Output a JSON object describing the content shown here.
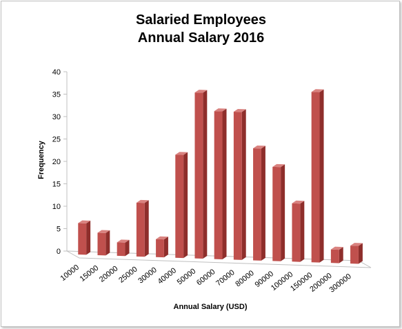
{
  "chart_data": {
    "type": "bar",
    "title_line1": "Salaried Employees",
    "title_line2": "Annual Salary 2016",
    "xlabel": "Annual Salary (USD)",
    "ylabel": "Frequency",
    "ylim": [
      0,
      40
    ],
    "yticks": [
      "0",
      "5",
      "10",
      "15",
      "20",
      "25",
      "30",
      "35",
      "40"
    ],
    "categories": [
      "10000",
      "15000",
      "20000",
      "25000",
      "30000",
      "40000",
      "50000",
      "60000",
      "70000",
      "80000",
      "90000",
      "100000",
      "150000",
      "200000",
      "300000"
    ],
    "values": [
      7,
      5,
      3,
      12,
      4,
      23,
      37,
      33,
      33,
      25,
      21,
      13,
      38,
      3,
      4
    ],
    "bar_color": "#c0504d",
    "bar_side_color": "#8e2e2b",
    "bar_top_color": "#d9827f",
    "grid": false,
    "legend": "none"
  }
}
